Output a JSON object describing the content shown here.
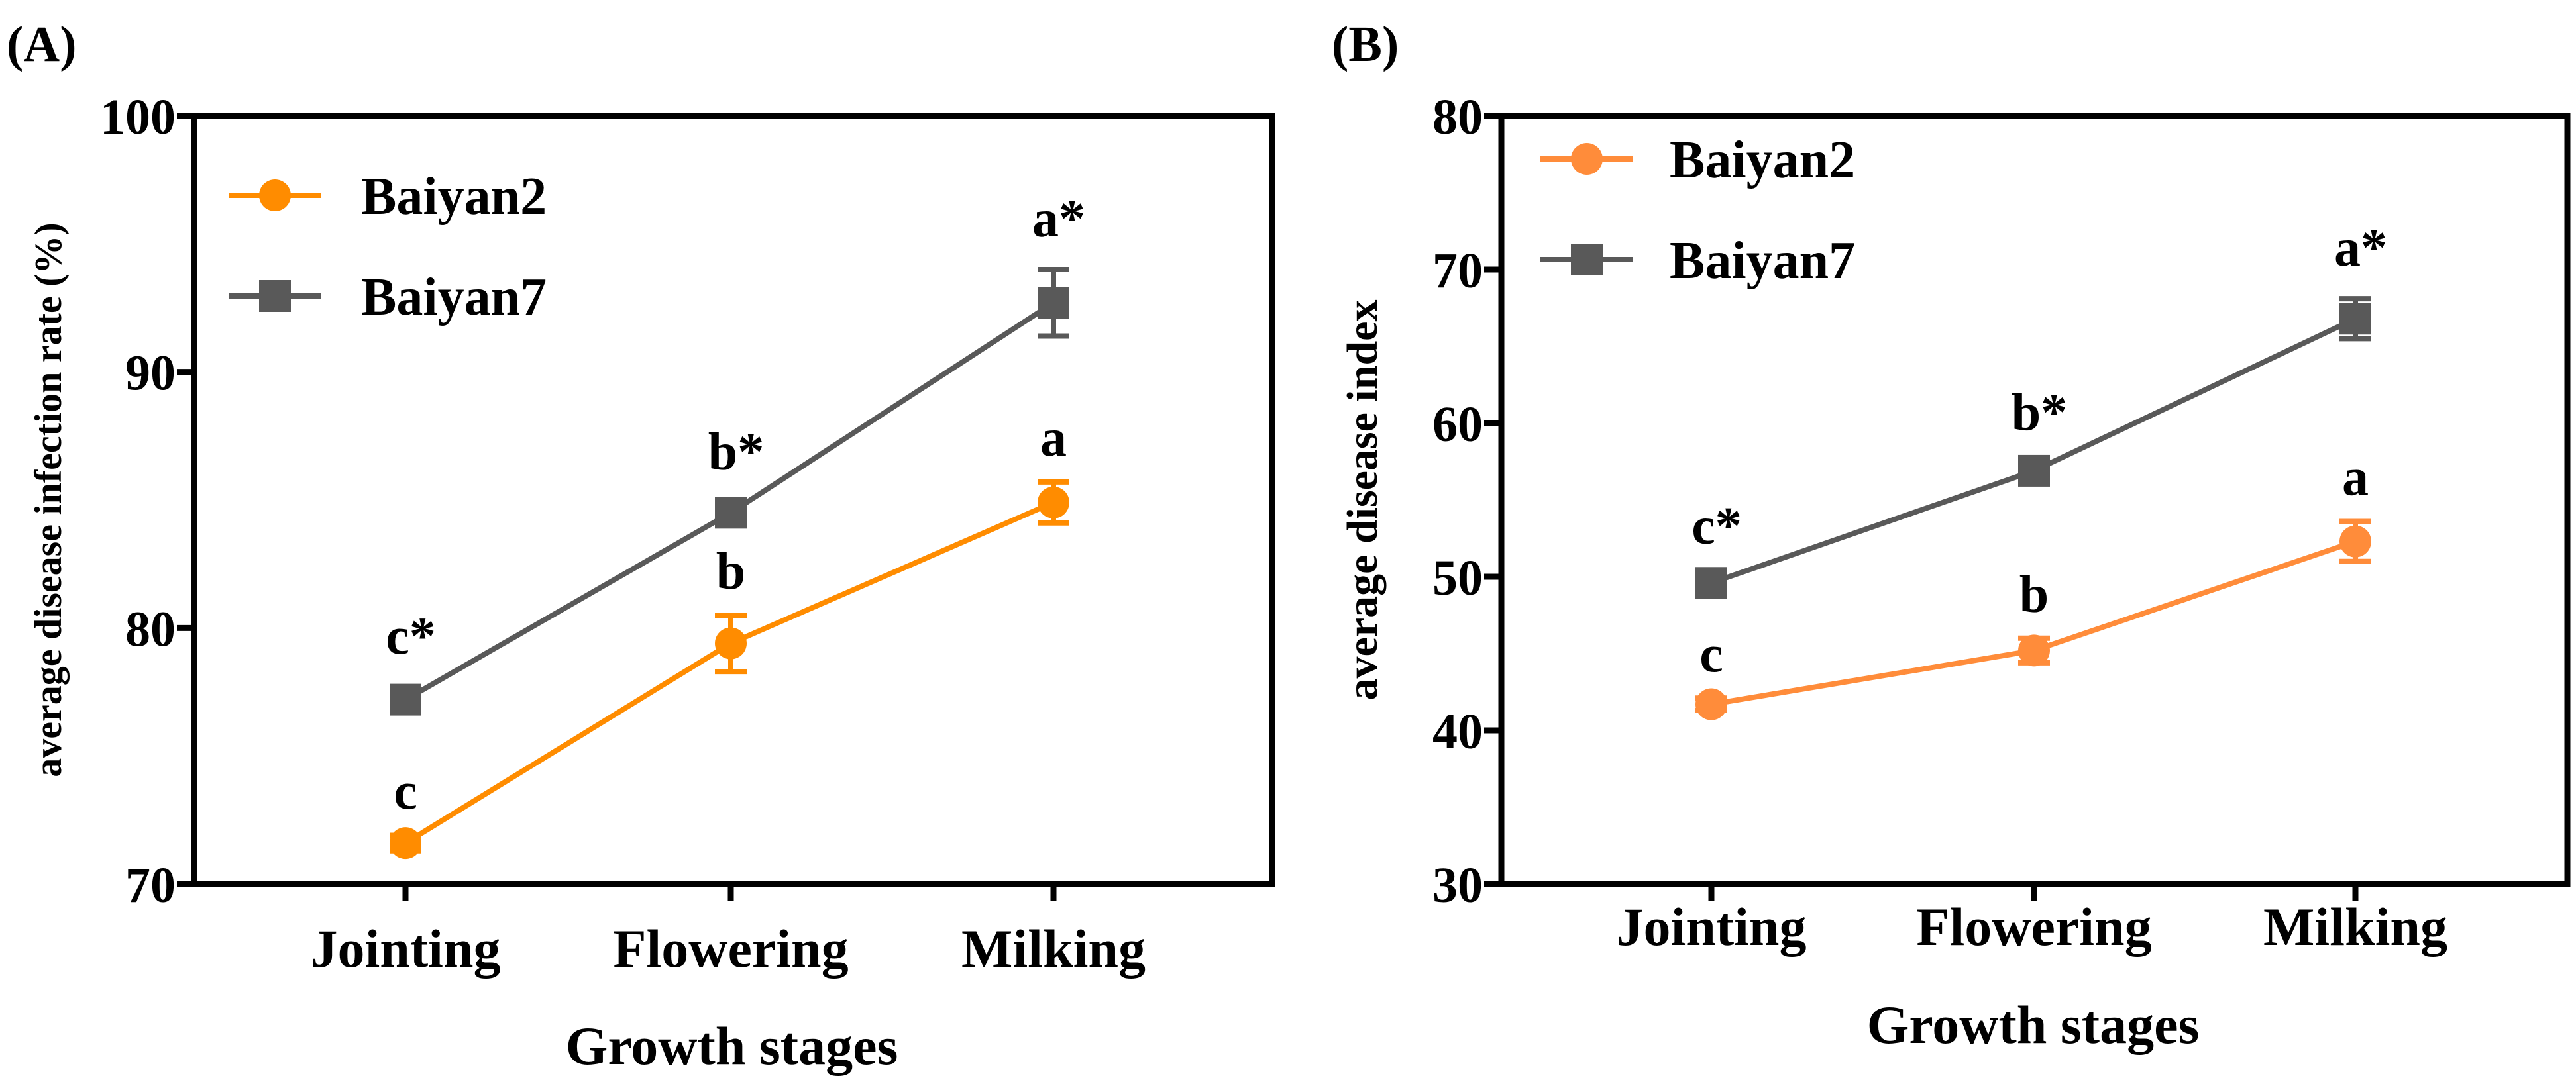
{
  "chart_data": [
    {
      "panel_label": "(A)",
      "type": "line",
      "categories": [
        "Jointing",
        "Flowering",
        "Milking"
      ],
      "xlabel": "Growth stages",
      "ylabel": "average disease infection rate (%)",
      "ylim": [
        70,
        100
      ],
      "yticks": [
        70,
        80,
        90,
        100
      ],
      "legend_position": "top-left",
      "series": [
        {
          "name": "Baiyan2",
          "color": "#ff8c00",
          "marker": "circle",
          "values": [
            71.6,
            79.4,
            84.9
          ],
          "errors": [
            0.3,
            1.1,
            0.8
          ],
          "significance": [
            "c",
            "b",
            "a"
          ]
        },
        {
          "name": "Baiyan7",
          "color": "#595959",
          "marker": "square",
          "values": [
            77.2,
            84.5,
            92.7
          ],
          "errors": [
            0.5,
            0.4,
            1.3
          ],
          "significance": [
            "c*",
            "b*",
            "a*"
          ]
        }
      ]
    },
    {
      "panel_label": "(B)",
      "type": "line",
      "categories": [
        "Jointing",
        "Flowering",
        "Milking"
      ],
      "xlabel": "Growth stages",
      "ylabel": "average disease index",
      "ylim": [
        30,
        80
      ],
      "yticks": [
        30,
        40,
        50,
        60,
        70,
        80
      ],
      "legend_position": "top-left",
      "series": [
        {
          "name": "Baiyan2",
          "color": "#ff8c3a",
          "marker": "circle",
          "values": [
            41.7,
            45.2,
            52.3
          ],
          "errors": [
            0.4,
            0.8,
            1.3
          ],
          "significance": [
            "c",
            "b",
            "a"
          ]
        },
        {
          "name": "Baiyan7",
          "color": "#595959",
          "marker": "square",
          "values": [
            49.6,
            56.9,
            66.8
          ],
          "errors": [
            0.4,
            0.5,
            1.3
          ],
          "significance": [
            "c*",
            "b*",
            "a*"
          ]
        }
      ]
    }
  ]
}
